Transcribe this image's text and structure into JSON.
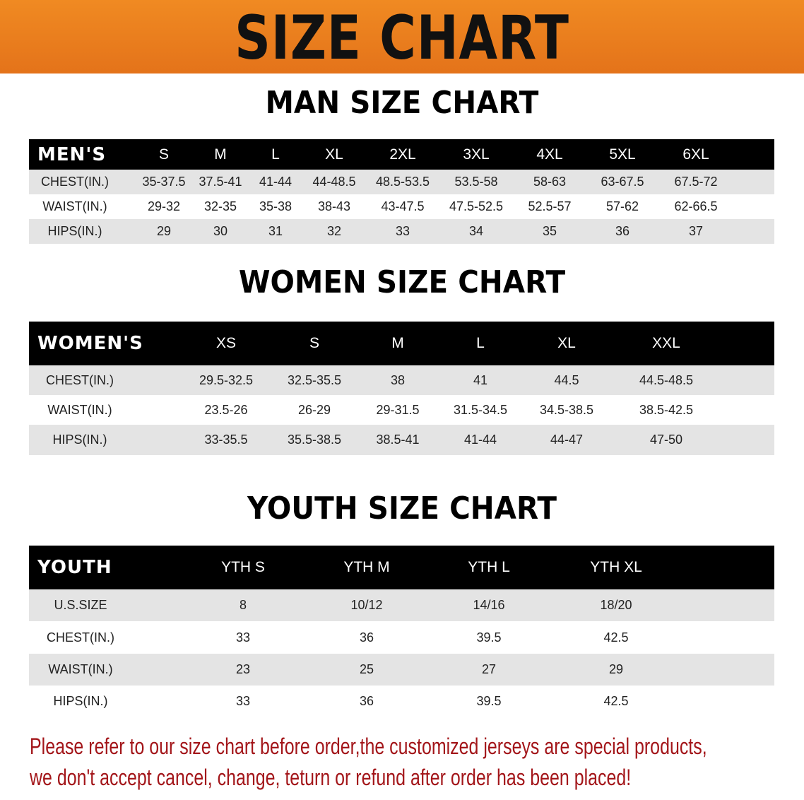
{
  "banner": {
    "title": "SIZE CHART",
    "color": "#e8771c"
  },
  "men": {
    "title": "MAN SIZE CHART",
    "header": [
      "MEN'S",
      "S",
      "M",
      "L",
      "XL",
      "2XL",
      "3XL",
      "4XL",
      "5XL",
      "6XL"
    ],
    "rows": [
      [
        "CHEST(IN.)",
        "35-37.5",
        "37.5-41",
        "41-44",
        "44-48.5",
        "48.5-53.5",
        "53.5-58",
        "58-63",
        "63-67.5",
        "67.5-72"
      ],
      [
        "WAIST(IN.)",
        "29-32",
        "32-35",
        "35-38",
        "38-43",
        "43-47.5",
        "47.5-52.5",
        "52.5-57",
        "57-62",
        "62-66.5"
      ],
      [
        "HIPS(IN.)",
        "29",
        "30",
        "31",
        "32",
        "33",
        "34",
        "35",
        "36",
        "37"
      ]
    ]
  },
  "women": {
    "title": "WOMEN SIZE CHART",
    "header": [
      "WOMEN'S",
      "XS",
      "S",
      "M",
      "L",
      "XL",
      "XXL"
    ],
    "rows": [
      [
        "CHEST(IN.)",
        "29.5-32.5",
        "32.5-35.5",
        "38",
        "41",
        "44.5",
        "44.5-48.5"
      ],
      [
        "WAIST(IN.)",
        "23.5-26",
        "26-29",
        "29-31.5",
        "31.5-34.5",
        "34.5-38.5",
        "38.5-42.5"
      ],
      [
        "HIPS(IN.)",
        "33-35.5",
        "35.5-38.5",
        "38.5-41",
        "41-44",
        "44-47",
        "47-50"
      ]
    ]
  },
  "youth": {
    "title": "YOUTH SIZE CHART",
    "header": [
      "YOUTH",
      "YTH S",
      "YTH M",
      "YTH L",
      "YTH XL"
    ],
    "rows": [
      [
        "U.S.SIZE",
        "8",
        "10/12",
        "14/16",
        "18/20"
      ],
      [
        "CHEST(IN.)",
        "33",
        "36",
        "39.5",
        "42.5"
      ],
      [
        "WAIST(IN.)",
        "23",
        "25",
        "27",
        "29"
      ],
      [
        "HIPS(IN.)",
        "33",
        "36",
        "39.5",
        "42.5"
      ]
    ]
  },
  "notice": {
    "line1": "Please refer to our size chart before order,the customized jerseys are special products,",
    "line2": "we don't accept cancel, change, teturn or refund after order has been placed!",
    "color": "#a3161a"
  }
}
